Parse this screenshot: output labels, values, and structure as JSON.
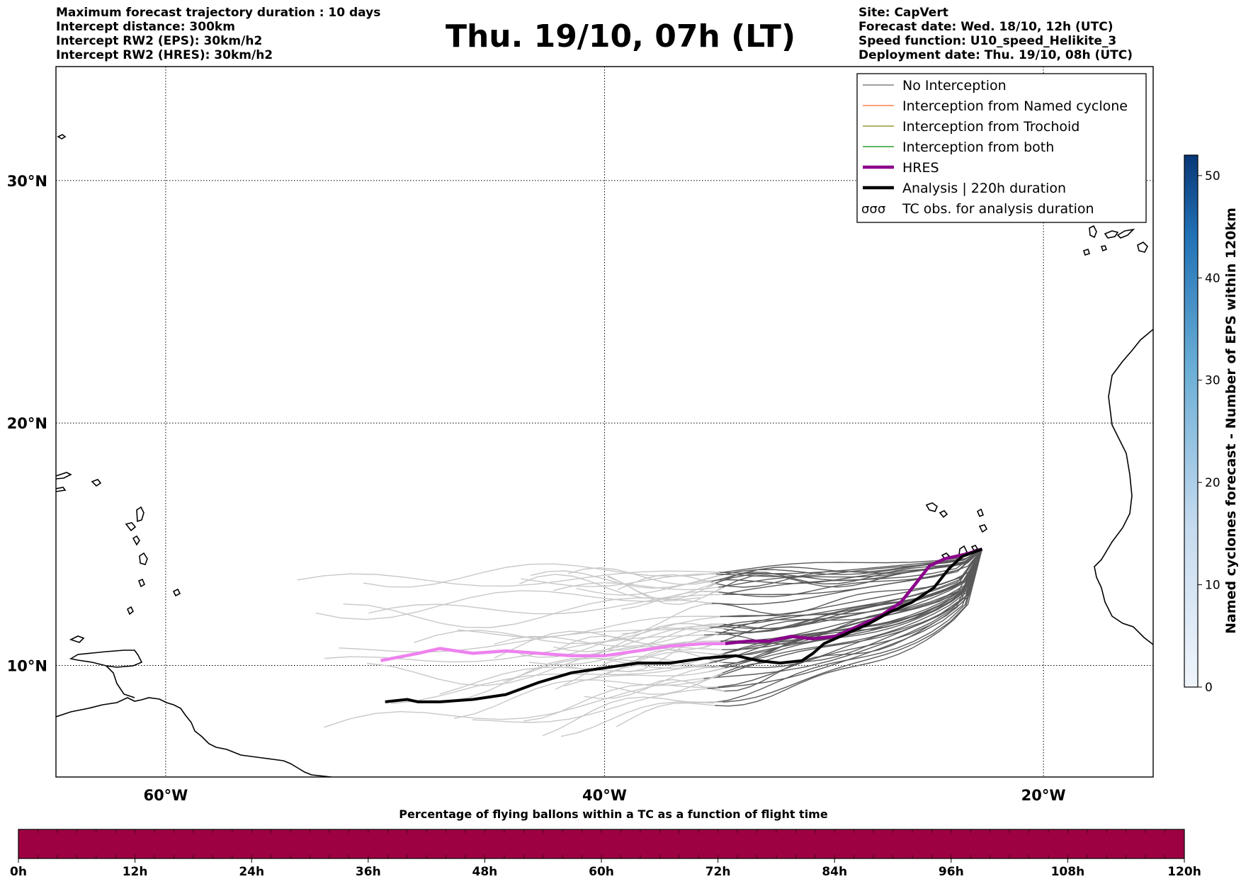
{
  "header_left": [
    "Maximum forecast trajectory duration : 10 days",
    "Intercept distance: 300km",
    "Intercept RW2 (EPS):  30km/h2",
    "Intercept RW2 (HRES): 30km/h2"
  ],
  "header_right": [
    "Site: CapVert",
    "Forecast date: Wed. 18/10, 12h (UTC)",
    "Speed function: U10_speed_Helikite_3",
    "Deployment date: Thu. 19/10, 08h (UTC)"
  ],
  "title": "Thu. 19/10, 07h (LT)",
  "map": {
    "lon_range": [
      -65,
      -15
    ],
    "lat_range": [
      5.4,
      34.7
    ],
    "lon_ticks": [
      {
        "value": -60,
        "label": "60°W"
      },
      {
        "value": -40,
        "label": "40°W"
      },
      {
        "value": -20,
        "label": "20°W"
      }
    ],
    "lat_ticks": [
      {
        "value": 10,
        "label": "10°N"
      },
      {
        "value": 20,
        "label": "20°N"
      },
      {
        "value": 30,
        "label": "30°N"
      }
    ],
    "grid": true,
    "site": {
      "name": "CapVert",
      "lon": -22.8,
      "lat": 14.8
    }
  },
  "legend": {
    "placement": "top-right",
    "items": [
      {
        "label": "No Interception",
        "color": "#808080",
        "style": "line"
      },
      {
        "label": "Interception from Named cyclone",
        "color": "#ff7f50",
        "style": "line"
      },
      {
        "label": "Interception from Trochoid",
        "color": "#999933",
        "style": "line"
      },
      {
        "label": "Interception from both",
        "color": "#2ca02c",
        "style": "line"
      },
      {
        "label": "HRES",
        "color": "#8b008b",
        "style": "thick"
      },
      {
        "label": "Analysis | 220h duration",
        "color": "#000000",
        "style": "thick"
      },
      {
        "label": "TC obs. for analysis duration",
        "color": "#000000",
        "style": "symbol"
      }
    ]
  },
  "tracks": {
    "hres": [
      [
        -22.8,
        14.8
      ],
      [
        -23.5,
        14.6
      ],
      [
        -24.5,
        14.4
      ],
      [
        -25.2,
        14.1
      ],
      [
        -25.8,
        13.4
      ],
      [
        -26.5,
        12.6
      ],
      [
        -27.5,
        12.0
      ],
      [
        -28.5,
        11.6
      ],
      [
        -29.5,
        11.2
      ],
      [
        -30.5,
        11.1
      ],
      [
        -31.5,
        11.2
      ],
      [
        -32.5,
        11.0
      ],
      [
        -33.5,
        11.0
      ],
      [
        -34.5,
        10.9
      ],
      [
        -35.5,
        10.9
      ],
      [
        -37.0,
        10.8
      ],
      [
        -38.5,
        10.6
      ],
      [
        -40.0,
        10.4
      ],
      [
        -41.5,
        10.4
      ],
      [
        -43.0,
        10.5
      ],
      [
        -44.5,
        10.6
      ],
      [
        -46.0,
        10.5
      ],
      [
        -47.5,
        10.7
      ],
      [
        -48.5,
        10.5
      ],
      [
        -50.2,
        10.2
      ]
    ],
    "analysis": [
      [
        -22.8,
        14.8
      ],
      [
        -23.7,
        14.5
      ],
      [
        -24.3,
        14.0
      ],
      [
        -25.0,
        13.2
      ],
      [
        -26.0,
        12.6
      ],
      [
        -27.0,
        12.2
      ],
      [
        -28.0,
        11.7
      ],
      [
        -29.0,
        11.3
      ],
      [
        -30.0,
        10.9
      ],
      [
        -30.5,
        10.5
      ],
      [
        -31.0,
        10.2
      ],
      [
        -32.0,
        10.1
      ],
      [
        -33.0,
        10.2
      ],
      [
        -34.0,
        10.4
      ],
      [
        -35.5,
        10.3
      ],
      [
        -37.0,
        10.1
      ],
      [
        -38.5,
        10.1
      ],
      [
        -40.0,
        9.9
      ],
      [
        -41.5,
        9.7
      ],
      [
        -43.0,
        9.3
      ],
      [
        -44.5,
        8.8
      ],
      [
        -46.0,
        8.6
      ],
      [
        -47.5,
        8.5
      ],
      [
        -48.5,
        8.5
      ],
      [
        -49.0,
        8.6
      ],
      [
        -50.0,
        8.5
      ]
    ],
    "ensemble_count": 50,
    "ensemble_color_near": "#5a5a5a",
    "ensemble_color_far": "#c8c8c8"
  },
  "eps_colorbar": {
    "label": "Named cyclones forecast - Number of EPS within 120km",
    "range": [
      0,
      52
    ],
    "ticks": [
      0,
      10,
      20,
      30,
      40,
      50
    ],
    "color_low": "#f0f5fc",
    "color_high": "#083776"
  },
  "flight_colorbar": {
    "title": "Percentage of flying ballons within a TC as a function of flight time",
    "ticks": [
      "0h",
      "12h",
      "24h",
      "36h",
      "48h",
      "60h",
      "72h",
      "84h",
      "96h",
      "108h",
      "120h"
    ],
    "fill_color": "#9e0142",
    "value_percent": 0
  }
}
